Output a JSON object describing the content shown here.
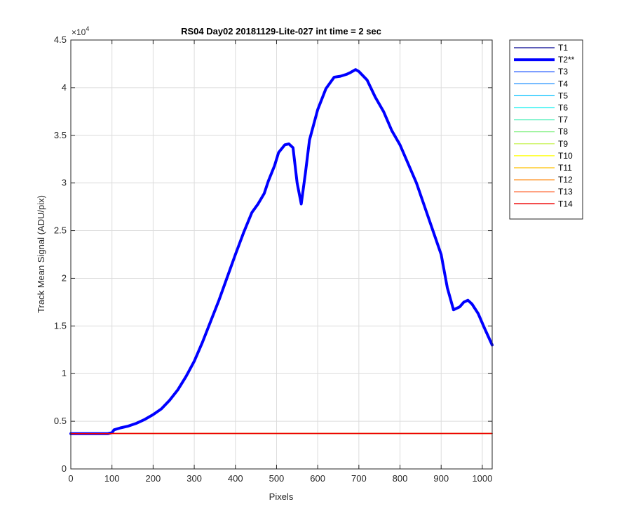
{
  "chart_data": {
    "type": "line",
    "title": "RS04 Day02 20181129-Lite-027 int time = 2 sec",
    "xlabel": "Pixels",
    "ylabel": "Track Mean Signal (ADU/pix)",
    "xlim": [
      0,
      1024
    ],
    "ylim": [
      0,
      45000
    ],
    "y_exponent_label": "×10",
    "y_exponent_power": "4",
    "grid": true,
    "legend_position": "outside-top-right",
    "x_ticks": [
      {
        "value": 0,
        "label": "0"
      },
      {
        "value": 100,
        "label": "100"
      },
      {
        "value": 200,
        "label": "200"
      },
      {
        "value": 300,
        "label": "300"
      },
      {
        "value": 400,
        "label": "400"
      },
      {
        "value": 500,
        "label": "500"
      },
      {
        "value": 600,
        "label": "600"
      },
      {
        "value": 700,
        "label": "700"
      },
      {
        "value": 800,
        "label": "800"
      },
      {
        "value": 900,
        "label": "900"
      },
      {
        "value": 1000,
        "label": "1000"
      }
    ],
    "y_ticks": [
      {
        "value": 0,
        "label": "0"
      },
      {
        "value": 5000,
        "label": "0.5"
      },
      {
        "value": 10000,
        "label": "1"
      },
      {
        "value": 15000,
        "label": "1.5"
      },
      {
        "value": 20000,
        "label": "2"
      },
      {
        "value": 25000,
        "label": "2.5"
      },
      {
        "value": 30000,
        "label": "3"
      },
      {
        "value": 35000,
        "label": "3.5"
      },
      {
        "value": 40000,
        "label": "4"
      },
      {
        "value": 45000,
        "label": "4.5"
      }
    ],
    "series": [
      {
        "name": "T1",
        "color": "#000090",
        "width": 1.2,
        "x": [
          0,
          95,
          105,
          1024
        ],
        "y": [
          3700,
          3700,
          3720,
          3720
        ]
      },
      {
        "name": "T2**",
        "color": "#0000ff",
        "width": 4,
        "x": [
          0,
          90,
          100,
          105,
          120,
          140,
          160,
          180,
          200,
          220,
          240,
          260,
          280,
          300,
          320,
          340,
          360,
          380,
          400,
          420,
          440,
          455,
          470,
          480,
          495,
          505,
          520,
          530,
          540,
          550,
          560,
          570,
          580,
          600,
          620,
          640,
          655,
          670,
          680,
          692,
          700,
          720,
          740,
          760,
          780,
          800,
          820,
          840,
          860,
          880,
          900,
          915,
          930,
          945,
          955,
          965,
          975,
          990,
          1005,
          1024
        ],
        "y": [
          3700,
          3700,
          3800,
          4100,
          4300,
          4500,
          4800,
          5200,
          5700,
          6300,
          7200,
          8300,
          9700,
          11300,
          13300,
          15500,
          17700,
          20100,
          22500,
          24800,
          26900,
          27800,
          28900,
          30200,
          31800,
          33200,
          34000,
          34100,
          33700,
          30000,
          27800,
          31000,
          34500,
          37700,
          39900,
          41100,
          41200,
          41400,
          41600,
          41900,
          41700,
          40800,
          39000,
          37500,
          35500,
          34000,
          32000,
          30000,
          27500,
          25000,
          22500,
          19000,
          16700,
          17000,
          17500,
          17700,
          17300,
          16300,
          14800,
          13000
        ]
      },
      {
        "name": "T3",
        "color": "#0040ff",
        "width": 1.2,
        "x": [
          0,
          95,
          105,
          1024
        ],
        "y": [
          3700,
          3700,
          3720,
          3720
        ]
      },
      {
        "name": "T4",
        "color": "#0080ff",
        "width": 1.2,
        "x": [
          0,
          95,
          105,
          1024
        ],
        "y": [
          3700,
          3700,
          3720,
          3720
        ]
      },
      {
        "name": "T5",
        "color": "#00bfff",
        "width": 1.2,
        "x": [
          0,
          95,
          105,
          1024
        ],
        "y": [
          3700,
          3700,
          3720,
          3720
        ]
      },
      {
        "name": "T6",
        "color": "#20f0f0",
        "width": 1.2,
        "x": [
          0,
          95,
          105,
          1024
        ],
        "y": [
          3700,
          3700,
          3720,
          3720
        ]
      },
      {
        "name": "T7",
        "color": "#60f0c0",
        "width": 1.2,
        "x": [
          0,
          95,
          105,
          1024
        ],
        "y": [
          3700,
          3700,
          3720,
          3720
        ]
      },
      {
        "name": "T8",
        "color": "#80f080",
        "width": 1.2,
        "x": [
          0,
          95,
          105,
          1024
        ],
        "y": [
          3700,
          3700,
          3720,
          3720
        ]
      },
      {
        "name": "T9",
        "color": "#c0f040",
        "width": 1.2,
        "x": [
          0,
          95,
          105,
          1024
        ],
        "y": [
          3700,
          3700,
          3720,
          3720
        ]
      },
      {
        "name": "T10",
        "color": "#ffff00",
        "width": 1.2,
        "x": [
          0,
          95,
          105,
          1024
        ],
        "y": [
          3700,
          3700,
          3720,
          3720
        ]
      },
      {
        "name": "T11",
        "color": "#ffc000",
        "width": 1.2,
        "x": [
          0,
          95,
          105,
          1024
        ],
        "y": [
          3700,
          3700,
          3720,
          3720
        ]
      },
      {
        "name": "T12",
        "color": "#ff8000",
        "width": 1.2,
        "x": [
          0,
          95,
          105,
          1024
        ],
        "y": [
          3700,
          3700,
          3720,
          3720
        ]
      },
      {
        "name": "T13",
        "color": "#ff4000",
        "width": 1.2,
        "x": [
          0,
          95,
          105,
          1024
        ],
        "y": [
          3700,
          3700,
          3720,
          3720
        ]
      },
      {
        "name": "T14",
        "color": "#ee0000",
        "width": 1.5,
        "x": [
          0,
          95,
          105,
          1024
        ],
        "y": [
          3700,
          3700,
          3720,
          3720
        ]
      }
    ]
  }
}
